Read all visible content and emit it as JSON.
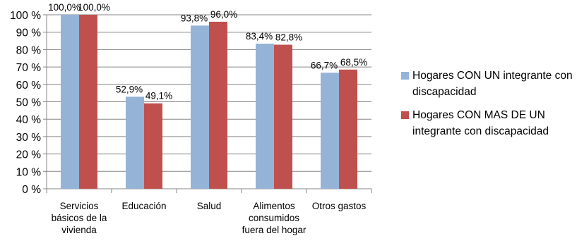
{
  "chart_data": {
    "type": "bar",
    "categories": [
      [
        "Servicios",
        "básicos de la",
        "vivienda"
      ],
      [
        "Educación"
      ],
      [
        "Salud"
      ],
      [
        "Alimentos",
        "consumidos",
        "fuera del hogar"
      ],
      [
        "Otros gastos"
      ]
    ],
    "series": [
      {
        "name": "Hogares CON UN integrante con discapacidad",
        "color": "#95B3D7",
        "values": [
          100.0,
          52.9,
          93.8,
          83.4,
          66.7
        ],
        "labels": [
          "100,0%",
          "52,9%",
          "93,8%",
          "83,4%",
          "66,7%"
        ]
      },
      {
        "name": "Hogares CON MAS DE UN integrante con discapacidad",
        "color": "#C0504D",
        "values": [
          100.0,
          49.1,
          96.0,
          82.8,
          68.5
        ],
        "labels": [
          "100,0%",
          "49,1%",
          "96,0%",
          "82,8%",
          "68,5%"
        ]
      }
    ],
    "ylim": [
      0,
      100
    ],
    "yticks": [
      "0 %",
      "10 %",
      "20 %",
      "30 %",
      "40 %",
      "50 %",
      "60 %",
      "70 %",
      "80 %",
      "90 %",
      "100 %"
    ],
    "grid": true,
    "legend_position": "right",
    "legend_lines": [
      [
        "Hogares CON UN integrante con",
        "discapacidad"
      ],
      [
        "Hogares CON MAS DE UN",
        "integrante con discapacidad"
      ]
    ]
  }
}
